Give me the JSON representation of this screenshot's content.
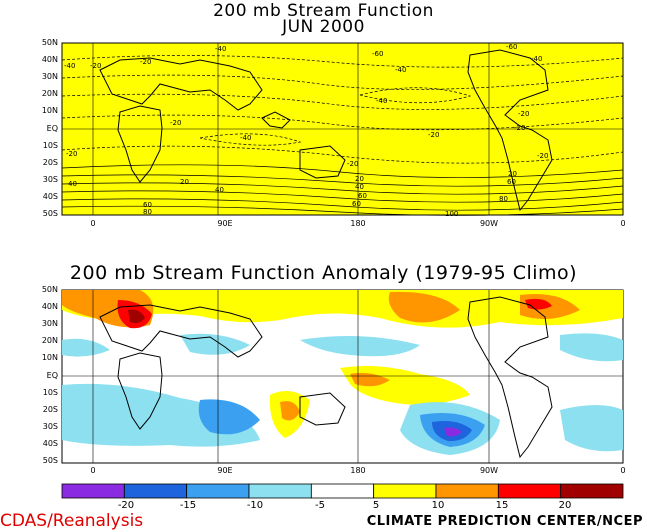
{
  "top_panel": {
    "title_line1": "200 mb Stream Function",
    "title_line2": "JUN 2000",
    "lat_labels": [
      "50N",
      "40N",
      "30N",
      "20N",
      "10N",
      "EQ",
      "10S",
      "20S",
      "30S",
      "40S",
      "50S"
    ],
    "lon_labels": [
      "0",
      "90E",
      "180",
      "90W",
      "0"
    ],
    "contour_labels": [
      "-40",
      "-20",
      "-60",
      "-40",
      "-60",
      "-40",
      "-20",
      "-40",
      "-20",
      "-20",
      "-40",
      "-20",
      "-20",
      "-20",
      "-20",
      "-40",
      "-20",
      "20",
      "20",
      "20",
      "40",
      "40",
      "40",
      "60",
      "60",
      "60",
      "60",
      "80",
      "80",
      "100"
    ]
  },
  "bottom_panel": {
    "title": "200 mb Stream Function Anomaly (1979-95 Climo)",
    "lat_labels": [
      "50N",
      "40N",
      "30N",
      "20N",
      "10N",
      "EQ",
      "10S",
      "20S",
      "30S",
      "40S",
      "50S"
    ],
    "lon_labels": [
      "0",
      "90E",
      "180",
      "90W",
      "0"
    ]
  },
  "colorbar": {
    "labels": [
      "-20",
      "-15",
      "-10",
      "-5",
      "5",
      "10",
      "15",
      "20"
    ],
    "colors": [
      "#8a2be2",
      "#1e64dc",
      "#3ca0f0",
      "#8ce0f0",
      "#ffffff",
      "#ffff00",
      "#ff9600",
      "#ff0000",
      "#a00000"
    ]
  },
  "footer": {
    "left": "CDAS/Reanalysis",
    "right": "CLIMATE PREDICTION CENTER/NCEP"
  },
  "colors": {
    "field_fill": "#ffff00",
    "title_red": "#e00000"
  }
}
